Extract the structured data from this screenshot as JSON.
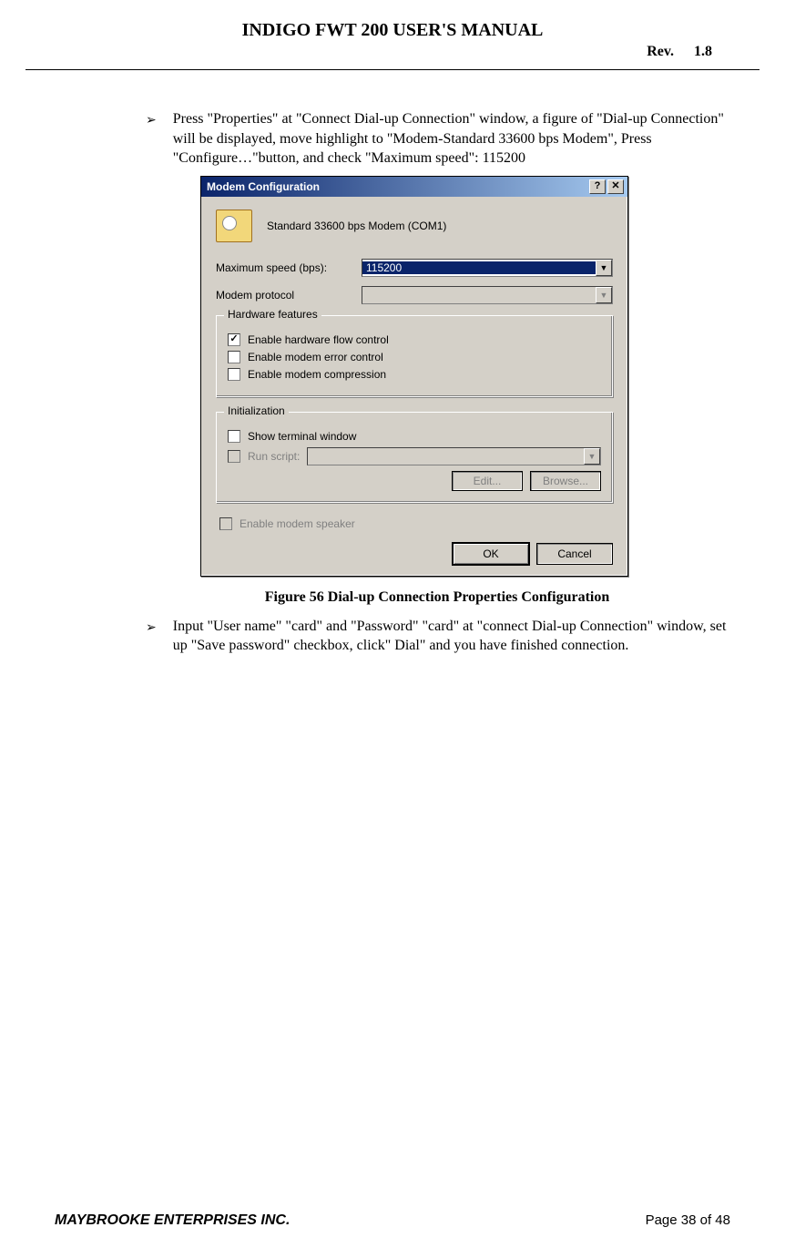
{
  "header": {
    "title": "INDIGO FWT 200 USER'S MANUAL",
    "rev_label": "Rev.",
    "rev_value": "1.8"
  },
  "bullets": {
    "first": "Press \"Properties\" at \"Connect Dial-up Connection\" window, a figure of \"Dial-up Connection\" will be displayed, move highlight to \"Modem-Standard 33600 bps Modem\", Press \"Configure…\"button, and check \"Maximum speed\": 115200",
    "second": "Input \"User name\" \"card\" and \"Password\" \"card\" at \"connect Dial-up Connection\" window, set up \"Save password\" checkbox, click\" Dial\" and you have finished connection."
  },
  "dialog": {
    "title": "Modem Configuration",
    "help_btn": "?",
    "close_btn": "✕",
    "modem_name": "Standard 33600 bps Modem (COM1)",
    "max_speed": {
      "label": "Maximum speed (bps):",
      "value": "115200"
    },
    "modem_protocol": {
      "label": "Modem protocol",
      "value": ""
    },
    "hardware_features": {
      "legend": "Hardware features",
      "flow_control": "Enable hardware flow control",
      "error_control": "Enable modem error control",
      "compression": "Enable modem compression"
    },
    "initialization": {
      "legend": "Initialization",
      "show_terminal": "Show terminal window",
      "run_script": "Run script:",
      "edit": "Edit...",
      "browse": "Browse..."
    },
    "speaker": "Enable modem speaker",
    "ok": "OK",
    "cancel": "Cancel"
  },
  "figure_caption": "Figure 56 Dial-up Connection Properties Configuration",
  "footer": {
    "company": "MAYBROOKE ENTERPRISES INC.",
    "page": "Page 38 of 48"
  }
}
